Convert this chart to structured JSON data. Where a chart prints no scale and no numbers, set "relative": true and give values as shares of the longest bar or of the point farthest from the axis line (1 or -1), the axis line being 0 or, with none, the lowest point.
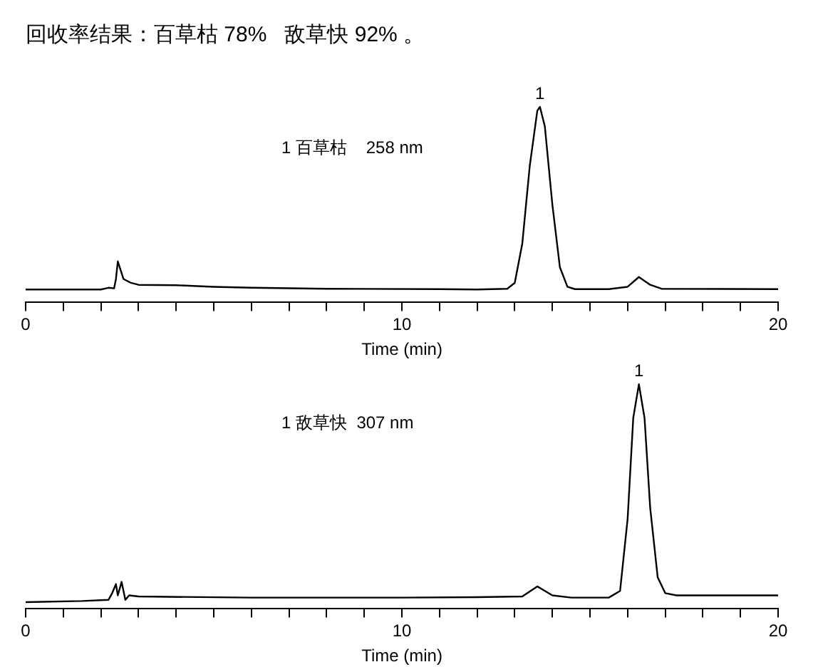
{
  "chart_data": [
    {
      "type": "line",
      "title": "回收率结果：百草枯 78%   敌草快 92% 。",
      "xlabel": "Time (min)",
      "relative": true,
      "legend": false,
      "grid": false,
      "marker": "none",
      "tick_labels": "x",
      "xlim": [
        0,
        20
      ],
      "xticks": [
        0,
        {
          "value": 1,
          "label": null
        },
        {
          "value": 2,
          "label": null
        },
        {
          "value": 3,
          "label": null
        },
        {
          "value": 4,
          "label": null
        },
        {
          "value": 5,
          "label": null
        },
        {
          "value": 6,
          "label": null
        },
        {
          "value": 7,
          "label": null
        },
        {
          "value": 8,
          "label": null
        },
        {
          "value": 9,
          "label": null
        },
        10,
        {
          "value": 11,
          "label": null
        },
        {
          "value": 12,
          "label": null
        },
        {
          "value": 13,
          "label": null
        },
        {
          "value": 14,
          "label": null
        },
        {
          "value": 15,
          "label": null
        },
        {
          "value": 16,
          "label": null
        },
        {
          "value": 17,
          "label": null
        },
        {
          "value": 18,
          "label": null
        },
        {
          "value": 19,
          "label": null
        },
        20
      ],
      "annotations": [
        "1 百草枯    258 nm",
        {
          "text": "1",
          "x": 13.67,
          "y": 1
        }
      ],
      "series": [
        {
          "color": "#000000",
          "x": [
            0,
            2.0,
            2.2,
            2.35,
            2.4,
            2.45,
            2.6,
            2.8,
            3.0,
            4,
            5,
            6,
            8,
            11,
            12,
            12.8,
            13.0,
            13.2,
            13.4,
            13.6,
            13.67,
            13.8,
            14.0,
            14.2,
            14.4,
            14.6,
            15.5,
            16.0,
            16.3,
            16.6,
            16.9,
            20
          ],
          "values": [
            0.066,
            0.066,
            0.075,
            0.072,
            0.12,
            0.21,
            0.12,
            0.1,
            0.09,
            0.088,
            0.08,
            0.075,
            0.07,
            0.068,
            0.066,
            0.07,
            0.1,
            0.3,
            0.7,
            0.98,
            1,
            0.9,
            0.5,
            0.18,
            0.08,
            0.068,
            0.068,
            0.08,
            0.13,
            0.09,
            0.07,
            0.068
          ]
        }
      ]
    },
    {
      "type": "line",
      "xlabel": "Time (min)",
      "relative": true,
      "legend": false,
      "grid": false,
      "marker": "none",
      "tick_labels": "x",
      "xlim": [
        0,
        20
      ],
      "xticks": [
        0,
        {
          "value": 1,
          "label": null
        },
        {
          "value": 2,
          "label": null
        },
        {
          "value": 3,
          "label": null
        },
        {
          "value": 4,
          "label": null
        },
        {
          "value": 5,
          "label": null
        },
        {
          "value": 6,
          "label": null
        },
        {
          "value": 7,
          "label": null
        },
        {
          "value": 8,
          "label": null
        },
        {
          "value": 9,
          "label": null
        },
        10,
        {
          "value": 11,
          "label": null
        },
        {
          "value": 12,
          "label": null
        },
        {
          "value": 13,
          "label": null
        },
        {
          "value": 14,
          "label": null
        },
        {
          "value": 15,
          "label": null
        },
        {
          "value": 16,
          "label": null
        },
        {
          "value": 17,
          "label": null
        },
        {
          "value": 18,
          "label": null
        },
        {
          "value": 19,
          "label": null
        },
        20
      ],
      "annotations": [
        "1 敌草快  307 nm",
        {
          "text": "1",
          "x": 16.3,
          "y": 1
        }
      ],
      "series": [
        {
          "color": "#000000",
          "x": [
            0,
            1.5,
            2.2,
            2.3,
            2.4,
            2.45,
            2.55,
            2.65,
            2.75,
            3.0,
            6,
            10,
            12,
            13.2,
            13.6,
            14.0,
            14.5,
            15.5,
            15.8,
            16.0,
            16.15,
            16.3,
            16.45,
            16.6,
            16.8,
            17.0,
            17.3,
            20
          ],
          "values": [
            0.03,
            0.035,
            0.04,
            0.07,
            0.11,
            0.06,
            0.12,
            0.04,
            0.06,
            0.055,
            0.05,
            0.05,
            0.052,
            0.055,
            0.1,
            0.06,
            0.05,
            0.05,
            0.08,
            0.4,
            0.85,
            1,
            0.85,
            0.45,
            0.14,
            0.07,
            0.06,
            0.06
          ]
        }
      ]
    }
  ]
}
